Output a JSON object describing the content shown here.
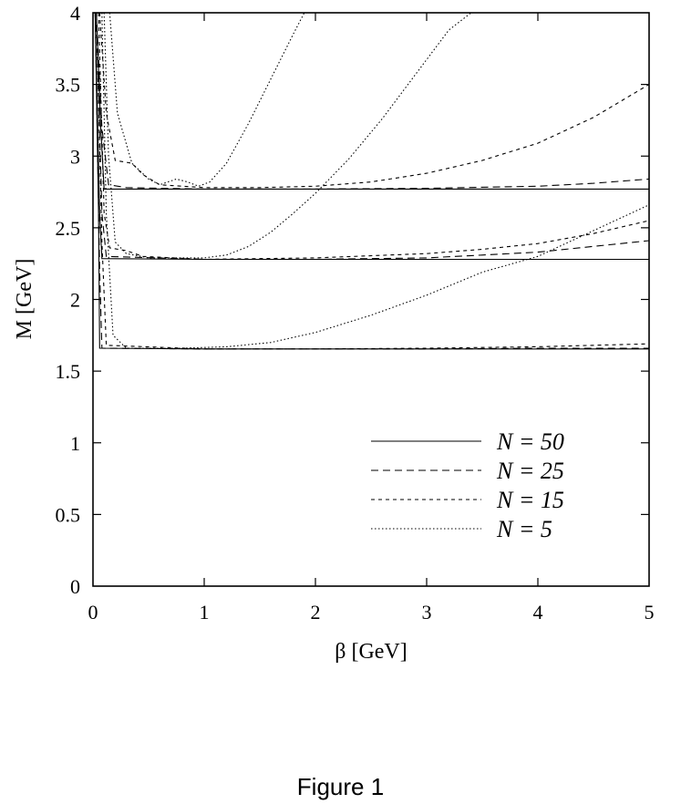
{
  "caption": "Figure 1",
  "chart_data": {
    "type": "line",
    "title": "",
    "xlabel": "β [GeV]",
    "ylabel": "M [GeV]",
    "xlim": [
      0,
      5
    ],
    "ylim": [
      0,
      4
    ],
    "xticks": [
      "0",
      "1",
      "2",
      "3",
      "4",
      "5"
    ],
    "yticks": [
      "0",
      "0.5",
      "1",
      "1.5",
      "2",
      "2.5",
      "3",
      "3.5",
      "4"
    ],
    "grid": false,
    "legend_position": "lower-right",
    "series": [
      {
        "name": "N = 50",
        "style": "solid",
        "curves": [
          [
            [
              0.02,
              4.0
            ],
            [
              0.05,
              2.6
            ],
            [
              0.06,
              1.66
            ],
            [
              1.0,
              1.655
            ],
            [
              3.0,
              1.655
            ],
            [
              5.0,
              1.655
            ]
          ],
          [
            [
              0.02,
              4.0
            ],
            [
              0.06,
              2.6
            ],
            [
              0.08,
              2.285
            ],
            [
              1.0,
              2.28
            ],
            [
              3.0,
              2.28
            ],
            [
              5.0,
              2.28
            ]
          ],
          [
            [
              0.03,
              4.0
            ],
            [
              0.07,
              3.2
            ],
            [
              0.1,
              2.77
            ],
            [
              1.0,
              2.77
            ],
            [
              3.0,
              2.77
            ],
            [
              5.0,
              2.77
            ]
          ]
        ]
      },
      {
        "name": "N = 25",
        "style": "dashed",
        "curves": [
          [
            [
              0.02,
              4.0
            ],
            [
              0.06,
              2.2
            ],
            [
              0.08,
              1.66
            ],
            [
              1.0,
              1.655
            ],
            [
              3.0,
              1.655
            ],
            [
              4.0,
              1.66
            ],
            [
              5.0,
              1.66
            ]
          ],
          [
            [
              0.03,
              4.0
            ],
            [
              0.08,
              2.6
            ],
            [
              0.12,
              2.3
            ],
            [
              1.0,
              2.28
            ],
            [
              2.0,
              2.28
            ],
            [
              3.0,
              2.29
            ],
            [
              3.5,
              2.31
            ],
            [
              4.0,
              2.33
            ],
            [
              4.5,
              2.37
            ],
            [
              5.0,
              2.41
            ]
          ],
          [
            [
              0.03,
              4.0
            ],
            [
              0.08,
              3.2
            ],
            [
              0.14,
              2.8
            ],
            [
              0.3,
              2.78
            ],
            [
              1.0,
              2.77
            ],
            [
              2.0,
              2.77
            ],
            [
              3.0,
              2.775
            ],
            [
              4.0,
              2.79
            ],
            [
              4.5,
              2.81
            ],
            [
              5.0,
              2.84
            ]
          ]
        ]
      },
      {
        "name": "N = 15",
        "style": "short-dashed",
        "curves": [
          [
            [
              0.03,
              4.0
            ],
            [
              0.08,
              2.4
            ],
            [
              0.12,
              1.68
            ],
            [
              1.0,
              1.655
            ],
            [
              2.0,
              1.655
            ],
            [
              3.0,
              1.66
            ],
            [
              4.0,
              1.67
            ],
            [
              5.0,
              1.69
            ]
          ],
          [
            [
              0.05,
              4.0
            ],
            [
              0.1,
              2.6
            ],
            [
              0.15,
              2.36
            ],
            [
              0.3,
              2.34
            ],
            [
              0.45,
              2.3
            ],
            [
              1.0,
              2.28
            ],
            [
              2.0,
              2.29
            ],
            [
              3.0,
              2.32
            ],
            [
              3.5,
              2.35
            ],
            [
              4.0,
              2.39
            ],
            [
              4.5,
              2.46
            ],
            [
              5.0,
              2.55
            ]
          ],
          [
            [
              0.06,
              4.0
            ],
            [
              0.12,
              3.3
            ],
            [
              0.2,
              2.97
            ],
            [
              0.35,
              2.95
            ],
            [
              0.45,
              2.87
            ],
            [
              0.6,
              2.8
            ],
            [
              1.0,
              2.78
            ],
            [
              1.5,
              2.78
            ],
            [
              2.0,
              2.79
            ],
            [
              2.5,
              2.82
            ],
            [
              3.0,
              2.88
            ],
            [
              3.5,
              2.97
            ],
            [
              4.0,
              3.09
            ],
            [
              4.5,
              3.27
            ],
            [
              5.0,
              3.5
            ]
          ]
        ]
      },
      {
        "name": "N = 5",
        "style": "dotted",
        "curves": [
          [
            [
              0.08,
              4.0
            ],
            [
              0.12,
              2.6
            ],
            [
              0.18,
              1.75
            ],
            [
              0.3,
              1.66
            ],
            [
              0.8,
              1.66
            ],
            [
              1.2,
              1.67
            ],
            [
              1.6,
              1.7
            ],
            [
              2.0,
              1.77
            ],
            [
              2.5,
              1.89
            ],
            [
              3.0,
              2.03
            ],
            [
              3.5,
              2.19
            ],
            [
              4.0,
              2.3
            ],
            [
              4.5,
              2.48
            ],
            [
              5.0,
              2.66
            ]
          ],
          [
            [
              0.1,
              4.0
            ],
            [
              0.14,
              3.0
            ],
            [
              0.2,
              2.4
            ],
            [
              0.3,
              2.32
            ],
            [
              0.5,
              2.29
            ],
            [
              1.0,
              2.29
            ],
            [
              1.2,
              2.31
            ],
            [
              1.4,
              2.37
            ],
            [
              1.6,
              2.47
            ],
            [
              1.8,
              2.6
            ],
            [
              2.0,
              2.74
            ],
            [
              2.3,
              2.98
            ],
            [
              2.6,
              3.26
            ],
            [
              2.9,
              3.57
            ],
            [
              3.2,
              3.88
            ],
            [
              3.4,
              4.0
            ]
          ],
          [
            [
              0.15,
              4.0
            ],
            [
              0.22,
              3.3
            ],
            [
              0.35,
              2.95
            ],
            [
              0.5,
              2.84
            ],
            [
              0.6,
              2.8
            ],
            [
              0.75,
              2.84
            ],
            [
              0.85,
              2.82
            ],
            [
              0.95,
              2.79
            ],
            [
              1.05,
              2.82
            ],
            [
              1.2,
              2.95
            ],
            [
              1.4,
              3.23
            ],
            [
              1.6,
              3.54
            ],
            [
              1.8,
              3.85
            ],
            [
              1.9,
              4.0
            ]
          ]
        ]
      }
    ]
  }
}
